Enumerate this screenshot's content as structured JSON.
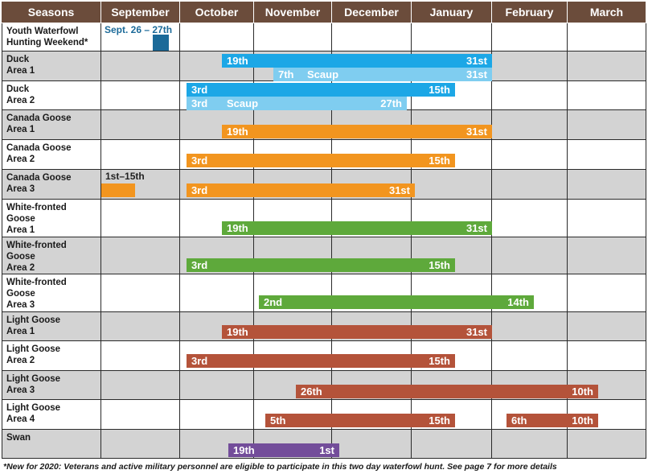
{
  "colors": {
    "header": "#6b4c3b",
    "duck": "#1ca7e6",
    "scaup": "#7fcdf0",
    "canada": "#f2951f",
    "whitefront": "#5ea93b",
    "light": "#b4533a",
    "swan": "#734d9a",
    "youth": "#1b6a99",
    "shade": "#d3d3d3"
  },
  "header": [
    "Seasons",
    "September",
    "October",
    "November",
    "December",
    "January",
    "February",
    "March"
  ],
  "rows": [
    {
      "label": "Youth Waterfowl\nHunting Weekend*",
      "shade": false
    },
    {
      "label": "Duck\nArea 1",
      "shade": true
    },
    {
      "label": "Duck\nArea 2",
      "shade": false
    },
    {
      "label": "Canada Goose\nArea 1",
      "shade": true
    },
    {
      "label": "Canada Goose\nArea 2",
      "shade": false
    },
    {
      "label": "Canada Goose\nArea 3",
      "shade": true
    },
    {
      "label": "White-fronted\nGoose\nArea 1",
      "shade": false
    },
    {
      "label": "White-fronted\nGoose\nArea 2",
      "shade": true
    },
    {
      "label": "White-fronted\nGoose\nArea 3",
      "shade": false
    },
    {
      "label": "Light Goose\nArea 1",
      "shade": true
    },
    {
      "label": "Light Goose\nArea 2",
      "shade": false
    },
    {
      "label": "Light Goose\nArea 3",
      "shade": true
    },
    {
      "label": "Light Goose\nArea 4",
      "shade": false
    },
    {
      "label": "Swan",
      "shade": true
    }
  ],
  "bars": [
    {
      "row": 1,
      "color": "duck",
      "start": "19th",
      "middle": "",
      "end": "31st"
    },
    {
      "row": 1,
      "color": "scaup",
      "start": "7th",
      "middle": "Scaup",
      "end": "31st"
    },
    {
      "row": 2,
      "color": "duck",
      "start": "3rd",
      "middle": "",
      "end": "15th"
    },
    {
      "row": 2,
      "color": "scaup",
      "start": "3rd",
      "middle": "Scaup",
      "end": "27th"
    },
    {
      "row": 3,
      "color": "canada",
      "start": "19th",
      "middle": "",
      "end": "31st"
    },
    {
      "row": 4,
      "color": "canada",
      "start": "3rd",
      "middle": "",
      "end": "15th"
    },
    {
      "row": 5,
      "color": "canada",
      "start": "",
      "middle": "",
      "end": ""
    },
    {
      "row": 5,
      "color": "canada",
      "start": "3rd",
      "middle": "",
      "end": "31st"
    },
    {
      "row": 6,
      "color": "whitefront",
      "start": "19th",
      "middle": "",
      "end": "31st"
    },
    {
      "row": 7,
      "color": "whitefront",
      "start": "3rd",
      "middle": "",
      "end": "15th"
    },
    {
      "row": 8,
      "color": "whitefront",
      "start": "2nd",
      "middle": "",
      "end": "14th"
    },
    {
      "row": 9,
      "color": "light",
      "start": "19th",
      "middle": "",
      "end": "31st"
    },
    {
      "row": 10,
      "color": "light",
      "start": "3rd",
      "middle": "",
      "end": "15th"
    },
    {
      "row": 11,
      "color": "light",
      "start": "26th",
      "middle": "",
      "end": "10th"
    },
    {
      "row": 12,
      "color": "light",
      "start": "5th",
      "middle": "",
      "end": "15th"
    },
    {
      "row": 12,
      "color": "light",
      "start": "6th",
      "middle": "",
      "end": "10th"
    },
    {
      "row": 13,
      "color": "swan",
      "start": "19th",
      "middle": "",
      "end": "1st"
    },
    {
      "row": 0,
      "color": "youth",
      "start": "",
      "middle": "",
      "end": ""
    }
  ],
  "notes": {
    "youth_dates": "Sept. 26 – 27th",
    "canada3_sept": "1st–15th"
  },
  "footnote": "*New for 2020: Veterans and active military personnel are eligible to participate in this two day waterfowl hunt. See page 7 for more details"
}
